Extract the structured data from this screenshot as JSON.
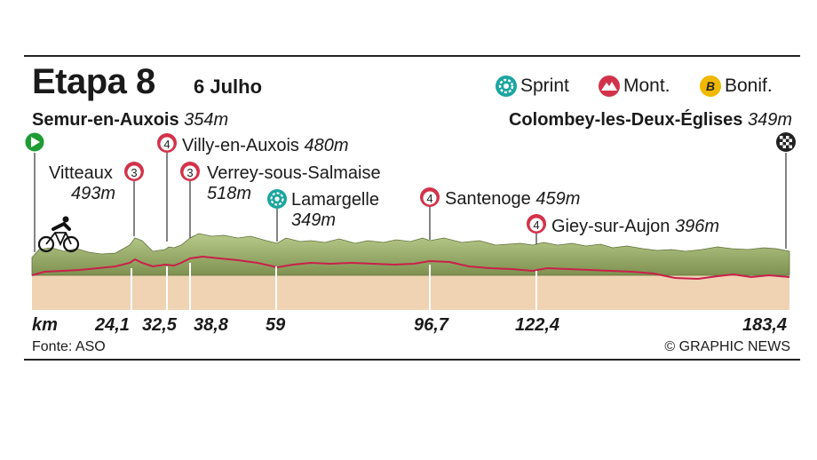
{
  "stage": {
    "title": "Etapa 8",
    "date": "6 Julho"
  },
  "legend": [
    {
      "label": "Sprint",
      "icon": "sprint-icon",
      "color": "#1aa5a0"
    },
    {
      "label": "Mont.",
      "icon": "mountain-icon",
      "color": "#d2334a"
    },
    {
      "label": "Bonif.",
      "icon": "bonus-icon",
      "color": "#f1b800",
      "letter": "B"
    }
  ],
  "start": {
    "town": "Semur-en-Auxois",
    "elevation": "354m"
  },
  "finish": {
    "town": "Colombey-les-Deux-Églises",
    "elevation": "349m"
  },
  "markers": [
    {
      "name": "Vitteaux",
      "elevation": "493m",
      "type": "climb",
      "category": "3",
      "km": 24.1,
      "km_label": "24,1"
    },
    {
      "name": "Villy-en-Auxois",
      "elevation": "480m",
      "type": "climb",
      "category": "4",
      "km": 32.5,
      "km_label": "32,5"
    },
    {
      "name": "Verrey-sous-Salmaise",
      "elevation": "518m",
      "type": "climb",
      "category": "3",
      "km": 38.8,
      "km_label": "38,8"
    },
    {
      "name": "Lamargelle",
      "elevation": "349m",
      "type": "sprint",
      "km": 59,
      "km_label": "59"
    },
    {
      "name": "Santenoge",
      "elevation": "459m",
      "type": "climb",
      "category": "4",
      "km": 96.7,
      "km_label": "96,7"
    },
    {
      "name": "Giey-sur-Aujon",
      "elevation": "396m",
      "type": "climb",
      "category": "4",
      "km": 122.4,
      "km_label": "122,4"
    }
  ],
  "axis": {
    "unit": "km",
    "total_km": 183.4,
    "total_label": "183,4"
  },
  "footer": {
    "source": "Fonte: ASO",
    "credit": "© GRAPHIC NEWS"
  },
  "colors": {
    "terrain_top": "#a9bd7c",
    "terrain_dark": "#6d7f46",
    "road": "#c8204a",
    "ground": "#efd3b3",
    "start": "#1f9b34",
    "finish": "#222222"
  }
}
